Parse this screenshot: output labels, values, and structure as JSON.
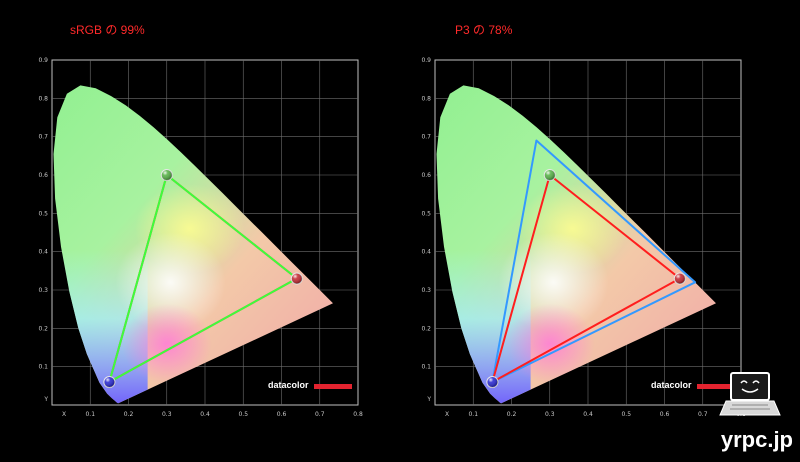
{
  "chart_data": [
    {
      "type": "scatter",
      "title": "sRGB の 99%",
      "xlabel": "X",
      "ylabel": "Y",
      "xlim": [
        0,
        0.8
      ],
      "ylim": [
        0,
        0.9
      ],
      "x_ticks": [
        "X",
        "0.1",
        "0.2",
        "0.3",
        "0.4",
        "0.5",
        "0.6",
        "0.7",
        "0.8"
      ],
      "y_ticks": [
        "Y",
        "0.1",
        "0.2",
        "0.3",
        "0.4",
        "0.5",
        "0.6",
        "0.7",
        "0.8",
        "0.9"
      ],
      "grid": true,
      "brand": "datacolor",
      "series": [
        {
          "color": "#ff1e1e",
          "points": [
            [
              0.64,
              0.33
            ],
            [
              0.3,
              0.6
            ],
            [
              0.15,
              0.06
            ]
          ]
        },
        {
          "color": "#3cff3c",
          "points": [
            [
              0.64,
              0.33
            ],
            [
              0.3,
              0.6
            ],
            [
              0.15,
              0.06
            ]
          ]
        }
      ],
      "markers": [
        {
          "x": 0.3,
          "y": 0.6,
          "color": "#4fae3f"
        },
        {
          "x": 0.64,
          "y": 0.33,
          "color": "#c2212a"
        },
        {
          "x": 0.15,
          "y": 0.06,
          "color": "#2020d0"
        }
      ]
    },
    {
      "type": "scatter",
      "title": "P3 の 78%",
      "xlabel": "X",
      "ylabel": "Y",
      "xlim": [
        0,
        0.8
      ],
      "ylim": [
        0,
        0.9
      ],
      "x_ticks": [
        "X",
        "0.1",
        "0.2",
        "0.3",
        "0.4",
        "0.5",
        "0.6",
        "0.7",
        "0.8"
      ],
      "y_ticks": [
        "Y",
        "0.1",
        "0.2",
        "0.3",
        "0.4",
        "0.5",
        "0.6",
        "0.7",
        "0.8",
        "0.9"
      ],
      "grid": true,
      "brand": "datacolor",
      "series": [
        {
          "color": "#3399ff",
          "points": [
            [
              0.68,
              0.32
            ],
            [
              0.265,
              0.69
            ],
            [
              0.15,
              0.06
            ]
          ]
        },
        {
          "color": "#ff1e1e",
          "points": [
            [
              0.64,
              0.33
            ],
            [
              0.3,
              0.6
            ],
            [
              0.15,
              0.06
            ]
          ]
        }
      ],
      "markers": [
        {
          "x": 0.3,
          "y": 0.6,
          "color": "#4fae3f"
        },
        {
          "x": 0.64,
          "y": 0.33,
          "color": "#c2212a"
        },
        {
          "x": 0.15,
          "y": 0.06,
          "color": "#2020d0"
        }
      ]
    }
  ],
  "watermark": {
    "text": "yrpc.jp"
  }
}
